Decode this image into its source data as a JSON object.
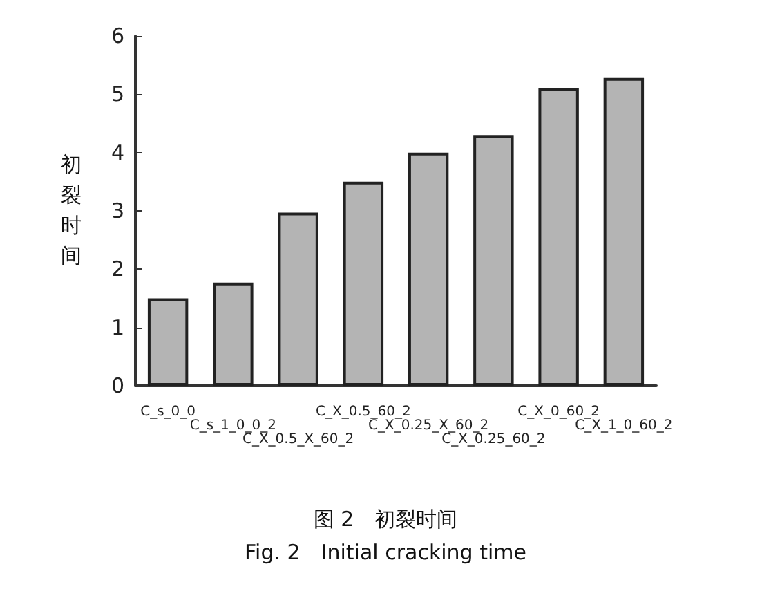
{
  "chart_data": {
    "type": "bar",
    "ylabel": "初裂时间",
    "categories": [
      "C_s_0_0",
      "C_s_1_0_0_2",
      "C_X_0.5_X_60_2",
      "C_X_0.5_60_2",
      "C_X_0.25_X_60_2",
      "C_X_0.25_60_2",
      "C_X_0_60_2",
      "C_X_1_0_60_2"
    ],
    "values": [
      1.5,
      1.77,
      2.97,
      3.5,
      4.0,
      4.3,
      5.1,
      5.28
    ],
    "color": "#b4b4b4",
    "ylim": [
      0,
      6
    ],
    "yticks": [
      0,
      1,
      2,
      3,
      4,
      5,
      6
    ],
    "grid": false,
    "annotations": [
      "图 2　初裂时间",
      "Fig. 2　Initial cracking time"
    ]
  }
}
